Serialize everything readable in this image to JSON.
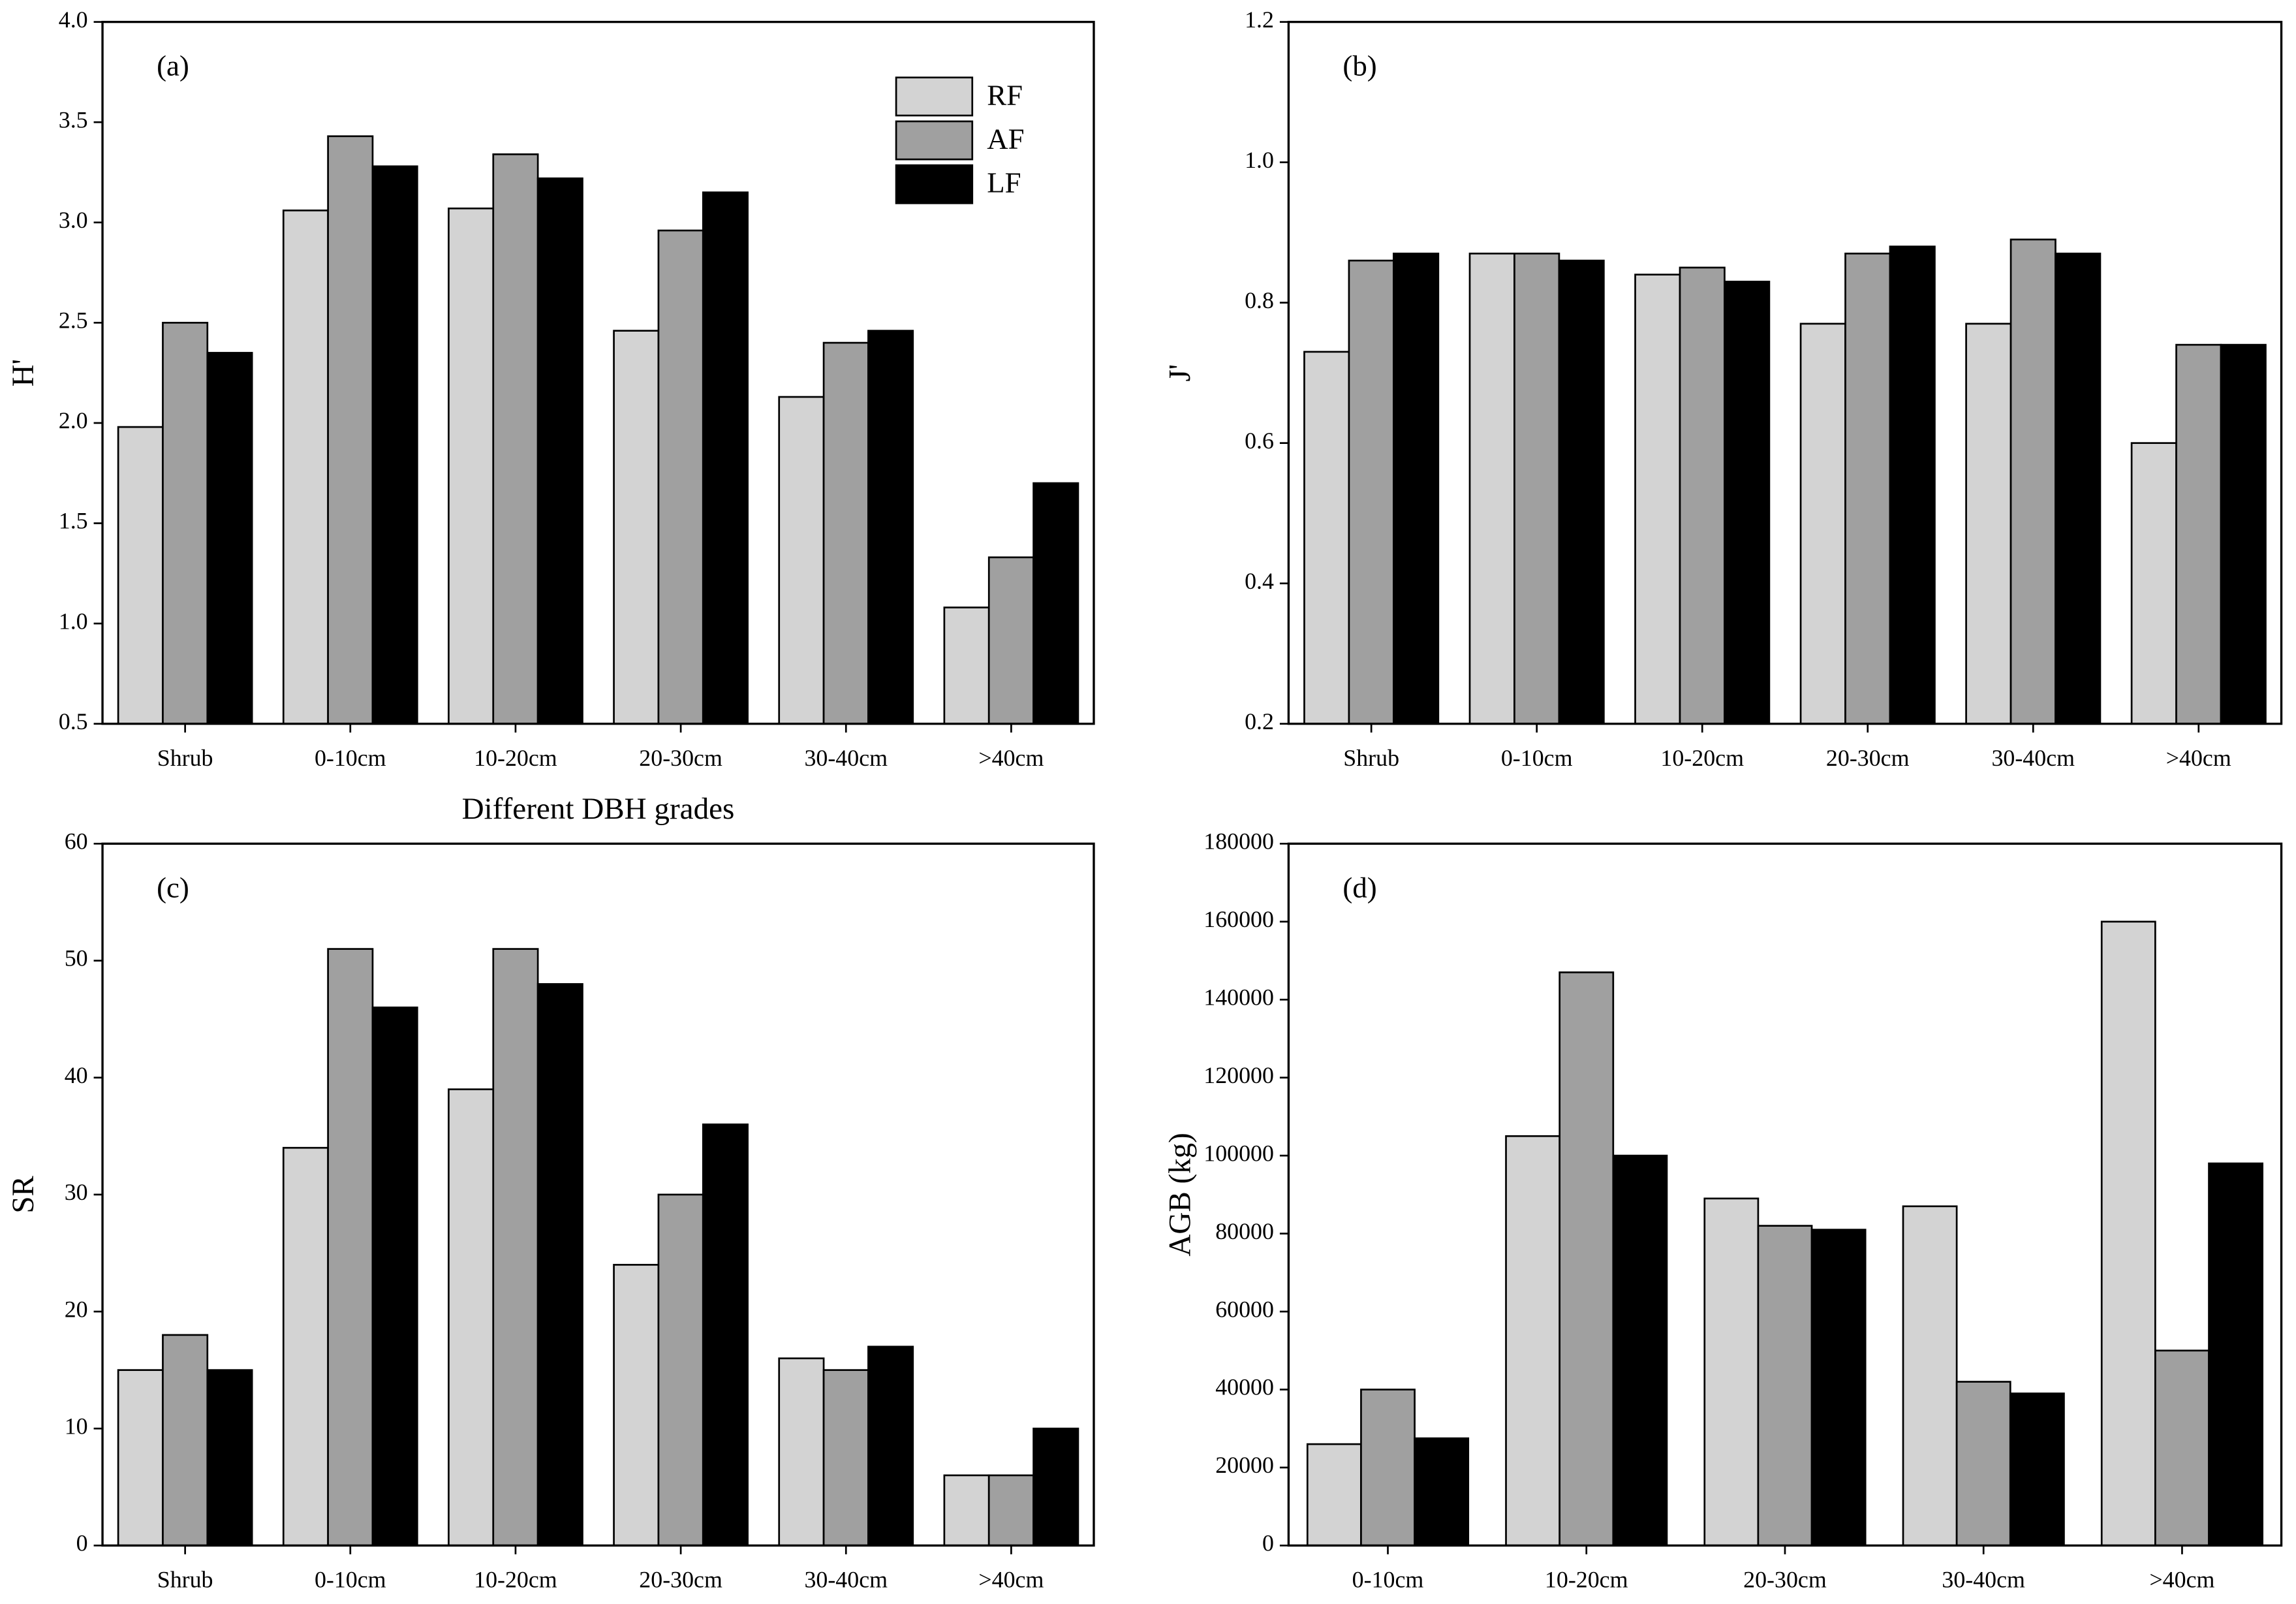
{
  "chart_data": [
    {
      "type": "bar",
      "title": "(a)",
      "x_label": "Different DBH grades",
      "y_label": "H'",
      "categories": [
        "Shrub",
        "0-10cm",
        "10-20cm",
        "20-30cm",
        "30-40cm",
        ">40cm"
      ],
      "series": [
        {
          "name": "RF",
          "color": "#d3d3d3",
          "values": [
            1.98,
            3.06,
            3.07,
            2.46,
            2.13,
            1.08
          ]
        },
        {
          "name": "AF",
          "color": "#a0a0a0",
          "values": [
            2.5,
            3.43,
            3.34,
            2.96,
            2.4,
            1.33
          ]
        },
        {
          "name": "LF",
          "color": "#000000",
          "values": [
            2.35,
            3.28,
            3.22,
            3.15,
            2.46,
            1.7
          ]
        }
      ],
      "ylim": [
        0.5,
        4
      ],
      "yticks": [
        0.5,
        {
          "value": 1,
          "label": "1.0"
        },
        1.5,
        {
          "value": 2,
          "label": "2.0"
        },
        2.5,
        {
          "value": 3,
          "label": "3.0"
        },
        3.5,
        {
          "value": 4,
          "label": "4.0"
        }
      ],
      "legend": "upper right"
    },
    {
      "type": "bar",
      "title": "(b)",
      "y_label": "J'",
      "categories": [
        "Shrub",
        "0-10cm",
        "10-20cm",
        "20-30cm",
        "30-40cm",
        ">40cm"
      ],
      "series": [
        {
          "color": "#d3d3d3",
          "values": [
            0.73,
            0.87,
            0.84,
            0.77,
            0.77,
            0.6
          ]
        },
        {
          "color": "#a0a0a0",
          "values": [
            0.86,
            0.87,
            0.85,
            0.87,
            0.89,
            0.74
          ]
        },
        {
          "color": "#000000",
          "values": [
            0.87,
            0.86,
            0.83,
            0.88,
            0.87,
            0.74
          ]
        }
      ],
      "ylim": [
        0.2,
        1.2
      ],
      "yticks": [
        0.2,
        0.4,
        0.6,
        0.8,
        {
          "value": 1,
          "label": "1.0"
        },
        1.2
      ]
    },
    {
      "type": "bar",
      "title": "(c)",
      "y_label": "SR",
      "categories": [
        "Shrub",
        "0-10cm",
        "10-20cm",
        "20-30cm",
        "30-40cm",
        ">40cm"
      ],
      "series": [
        {
          "color": "#d3d3d3",
          "values": [
            15,
            34,
            39,
            24,
            16,
            6
          ]
        },
        {
          "color": "#a0a0a0",
          "values": [
            18,
            51,
            51,
            30,
            15,
            6
          ]
        },
        {
          "color": "#000000",
          "values": [
            15,
            46,
            48,
            36,
            17,
            10
          ]
        }
      ],
      "ylim": [
        0,
        60
      ],
      "yticks": [
        0,
        10,
        20,
        30,
        40,
        50,
        60
      ]
    },
    {
      "type": "bar",
      "title": "(d)",
      "y_label": "AGB (kg)",
      "categories": [
        "0-10cm",
        "10-20cm",
        "20-30cm",
        "30-40cm",
        ">40cm"
      ],
      "series": [
        {
          "color": "#d3d3d3",
          "values": [
            26000,
            105000,
            89000,
            87000,
            160000
          ]
        },
        {
          "color": "#a0a0a0",
          "values": [
            40000,
            147000,
            82000,
            42000,
            50000
          ]
        },
        {
          "color": "#000000",
          "values": [
            27500,
            100000,
            81000,
            39000,
            98000
          ]
        }
      ],
      "ylim": [
        0,
        180000
      ],
      "yticks": [
        0,
        20000,
        40000,
        60000,
        80000,
        100000,
        120000,
        140000,
        160000,
        180000
      ]
    }
  ]
}
